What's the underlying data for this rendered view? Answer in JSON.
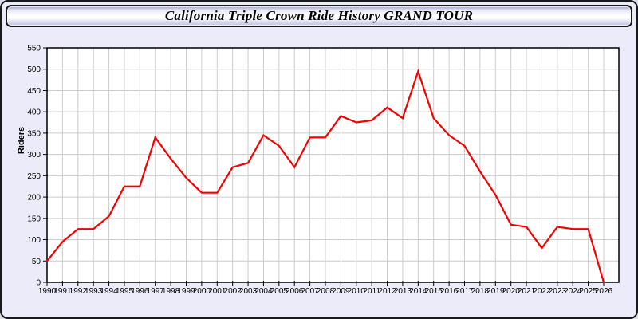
{
  "window": {
    "title": "California Triple Crown Ride History GRAND TOUR"
  },
  "chart_data": {
    "type": "line",
    "title": "California Triple Crown Ride History GRAND TOUR",
    "xlabel": "",
    "ylabel": "Riders",
    "x": [
      1990,
      1991,
      1992,
      1993,
      1994,
      1995,
      1996,
      1997,
      1998,
      1999,
      2000,
      2001,
      2002,
      2003,
      2004,
      2005,
      2006,
      2007,
      2008,
      2009,
      2010,
      2011,
      2012,
      2013,
      2014,
      2015,
      2016,
      2017,
      2018,
      2019,
      2020,
      2021,
      2022,
      2023,
      2024,
      2025,
      2026
    ],
    "series": [
      {
        "name": "Riders",
        "values": [
          50,
          95,
          125,
          125,
          155,
          225,
          225,
          340,
          290,
          245,
          210,
          210,
          270,
          280,
          345,
          320,
          270,
          340,
          340,
          390,
          375,
          380,
          410,
          385,
          495,
          385,
          345,
          320,
          260,
          205,
          135,
          130,
          80,
          130,
          125,
          125,
          0
        ]
      }
    ],
    "ylim": [
      0,
      550
    ],
    "ytick_step": 50,
    "yticks": [
      0,
      50,
      100,
      150,
      200,
      250,
      300,
      350,
      400,
      450,
      500,
      550
    ],
    "grid": true,
    "legend_position": "none",
    "line_color": "#f40000",
    "plot_bg": "#ffffff",
    "grid_color": "#cccccc",
    "frame_color": "#000000",
    "page_bg": "#ebebfa"
  }
}
